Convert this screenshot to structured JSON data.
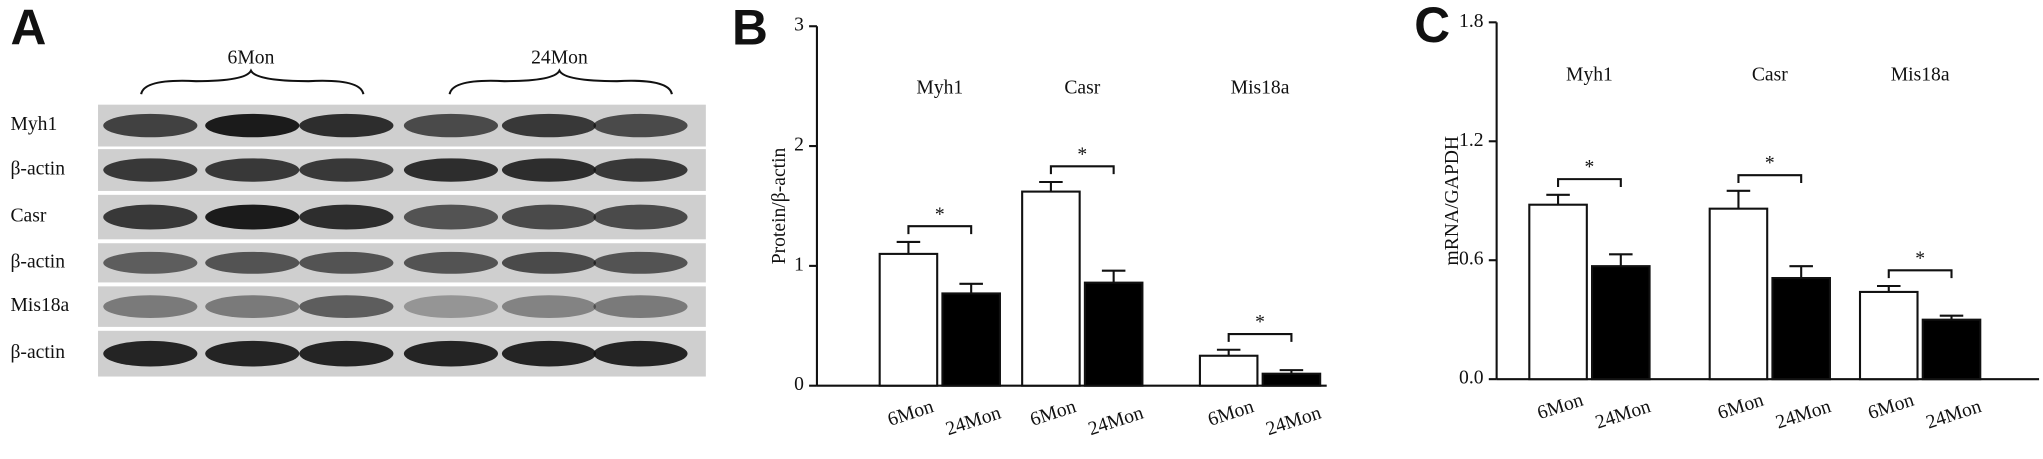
{
  "panel_labels": [
    "A",
    "B",
    "C"
  ],
  "blot": {
    "groups": [
      "6Mon",
      "24Mon"
    ],
    "rows": [
      "Myh1",
      "β-actin",
      "Casr",
      "β-actin",
      "Mis18a",
      "β-actin"
    ]
  },
  "chart_data": [
    {
      "type": "bar",
      "ylabel": "Protein/β-actin",
      "categories": [
        "Myh1",
        "Casr",
        "Mis18a"
      ],
      "series": [
        {
          "name": "6Mon",
          "color": "#ffffff",
          "values": [
            1.1,
            1.62,
            0.25
          ],
          "errors": [
            0.1,
            0.08,
            0.05
          ]
        },
        {
          "name": "24Mon",
          "color": "#000000",
          "values": [
            0.77,
            0.86,
            0.1
          ],
          "errors": [
            0.08,
            0.1,
            0.03
          ]
        }
      ],
      "significance": [
        "*",
        "*",
        "*"
      ],
      "ylim": [
        0,
        3
      ],
      "yticks": [
        0,
        1,
        2,
        3
      ]
    },
    {
      "type": "bar",
      "ylabel": "mRNA/GAPDH",
      "categories": [
        "Myh1",
        "Casr",
        "Mis18a"
      ],
      "series": [
        {
          "name": "6Mon",
          "color": "#ffffff",
          "values": [
            0.88,
            0.86,
            0.44
          ],
          "errors": [
            0.05,
            0.09,
            0.03
          ]
        },
        {
          "name": "24Mon",
          "color": "#000000",
          "values": [
            0.57,
            0.51,
            0.3
          ],
          "errors": [
            0.06,
            0.06,
            0.02
          ]
        }
      ],
      "significance": [
        "*",
        "*",
        "*"
      ],
      "ylim": [
        0,
        1.8
      ],
      "yticks": [
        {
          "value": 0,
          "label": "0.0"
        },
        0.6,
        1.2,
        1.8
      ]
    }
  ]
}
